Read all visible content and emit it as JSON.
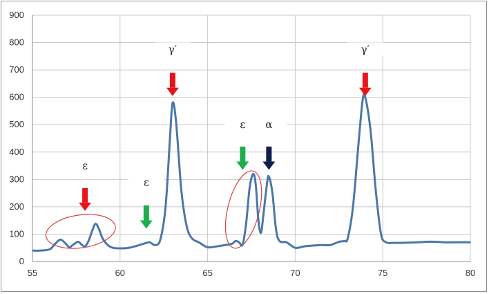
{
  "chart_data": {
    "type": "line",
    "title": "",
    "xlabel": "",
    "ylabel": "",
    "xlim": [
      55,
      80
    ],
    "ylim": [
      0,
      900
    ],
    "x_ticks": [
      55,
      60,
      65,
      70,
      75,
      80
    ],
    "y_ticks": [
      0,
      100,
      200,
      300,
      400,
      500,
      600,
      700,
      800,
      900
    ],
    "grid": true,
    "legend": "none",
    "series": [
      {
        "color": "#4a77a8",
        "points": [
          [
            55.0,
            40
          ],
          [
            55.5,
            40
          ],
          [
            56.0,
            45
          ],
          [
            56.3,
            65
          ],
          [
            56.6,
            80
          ],
          [
            56.9,
            65
          ],
          [
            57.1,
            52
          ],
          [
            57.3,
            60
          ],
          [
            57.6,
            72
          ],
          [
            57.8,
            62
          ],
          [
            58.0,
            55
          ],
          [
            58.2,
            75
          ],
          [
            58.4,
            110
          ],
          [
            58.6,
            138
          ],
          [
            58.8,
            118
          ],
          [
            59.0,
            85
          ],
          [
            59.3,
            60
          ],
          [
            59.6,
            50
          ],
          [
            60.0,
            48
          ],
          [
            60.5,
            50
          ],
          [
            61.0,
            58
          ],
          [
            61.4,
            66
          ],
          [
            61.7,
            70
          ],
          [
            62.0,
            60
          ],
          [
            62.3,
            80
          ],
          [
            62.6,
            200
          ],
          [
            62.85,
            450
          ],
          [
            63.0,
            580
          ],
          [
            63.2,
            510
          ],
          [
            63.5,
            260
          ],
          [
            63.8,
            130
          ],
          [
            64.1,
            85
          ],
          [
            64.5,
            70
          ],
          [
            65.0,
            52
          ],
          [
            65.5,
            55
          ],
          [
            66.0,
            60
          ],
          [
            66.4,
            65
          ],
          [
            66.6,
            75
          ],
          [
            66.8,
            70
          ],
          [
            67.0,
            62
          ],
          [
            67.2,
            140
          ],
          [
            67.4,
            270
          ],
          [
            67.6,
            320
          ],
          [
            67.75,
            280
          ],
          [
            67.9,
            150
          ],
          [
            68.05,
            105
          ],
          [
            68.2,
            180
          ],
          [
            68.4,
            290
          ],
          [
            68.5,
            310
          ],
          [
            68.7,
            250
          ],
          [
            68.9,
            120
          ],
          [
            69.1,
            75
          ],
          [
            69.5,
            70
          ],
          [
            70.0,
            50
          ],
          [
            70.5,
            55
          ],
          [
            71.0,
            58
          ],
          [
            71.5,
            60
          ],
          [
            72.0,
            60
          ],
          [
            72.5,
            72
          ],
          [
            72.8,
            75
          ],
          [
            73.0,
            85
          ],
          [
            73.3,
            200
          ],
          [
            73.6,
            420
          ],
          [
            73.85,
            590
          ],
          [
            74.0,
            600
          ],
          [
            74.3,
            480
          ],
          [
            74.6,
            260
          ],
          [
            74.9,
            100
          ],
          [
            75.2,
            70
          ],
          [
            75.6,
            68
          ],
          [
            76.0,
            68
          ],
          [
            77.0,
            70
          ],
          [
            77.5,
            72
          ],
          [
            78.0,
            72
          ],
          [
            78.5,
            70
          ],
          [
            79.0,
            70
          ],
          [
            80.0,
            70
          ]
        ]
      }
    ],
    "annotations": [
      {
        "text": "ε",
        "x": 58.0,
        "y": 345,
        "arrow_color": "#e8141c",
        "arrow_top": 268,
        "arrow_bottom": 185
      },
      {
        "text": "ε",
        "x": 61.5,
        "y": 285,
        "arrow_color": "#1fae4f",
        "arrow_top": 205,
        "arrow_bottom": 120
      },
      {
        "text": "γ′",
        "x": 63.0,
        "y": 770,
        "arrow_color": "#e8141c",
        "arrow_top": 690,
        "arrow_bottom": 605
      },
      {
        "text": "ε",
        "x": 67.0,
        "y": 495,
        "arrow_color": "#1fae4f",
        "arrow_top": 420,
        "arrow_bottom": 335
      },
      {
        "text": "α",
        "x": 68.5,
        "y": 495,
        "arrow_color": "#0d1f4d",
        "arrow_top": 420,
        "arrow_bottom": 335
      },
      {
        "text": "γ′",
        "x": 74.0,
        "y": 770,
        "arrow_color": "#e8141c",
        "arrow_top": 690,
        "arrow_bottom": 605
      }
    ],
    "ellipses": [
      {
        "cx": 57.75,
        "cy": 110,
        "rx": 2.0,
        "ry": 60,
        "rotate": -8,
        "color": "#e04040"
      },
      {
        "cx": 67.05,
        "cy": 190,
        "rx": 0.9,
        "ry": 145,
        "rotate": 14,
        "color": "#e04040"
      }
    ]
  }
}
